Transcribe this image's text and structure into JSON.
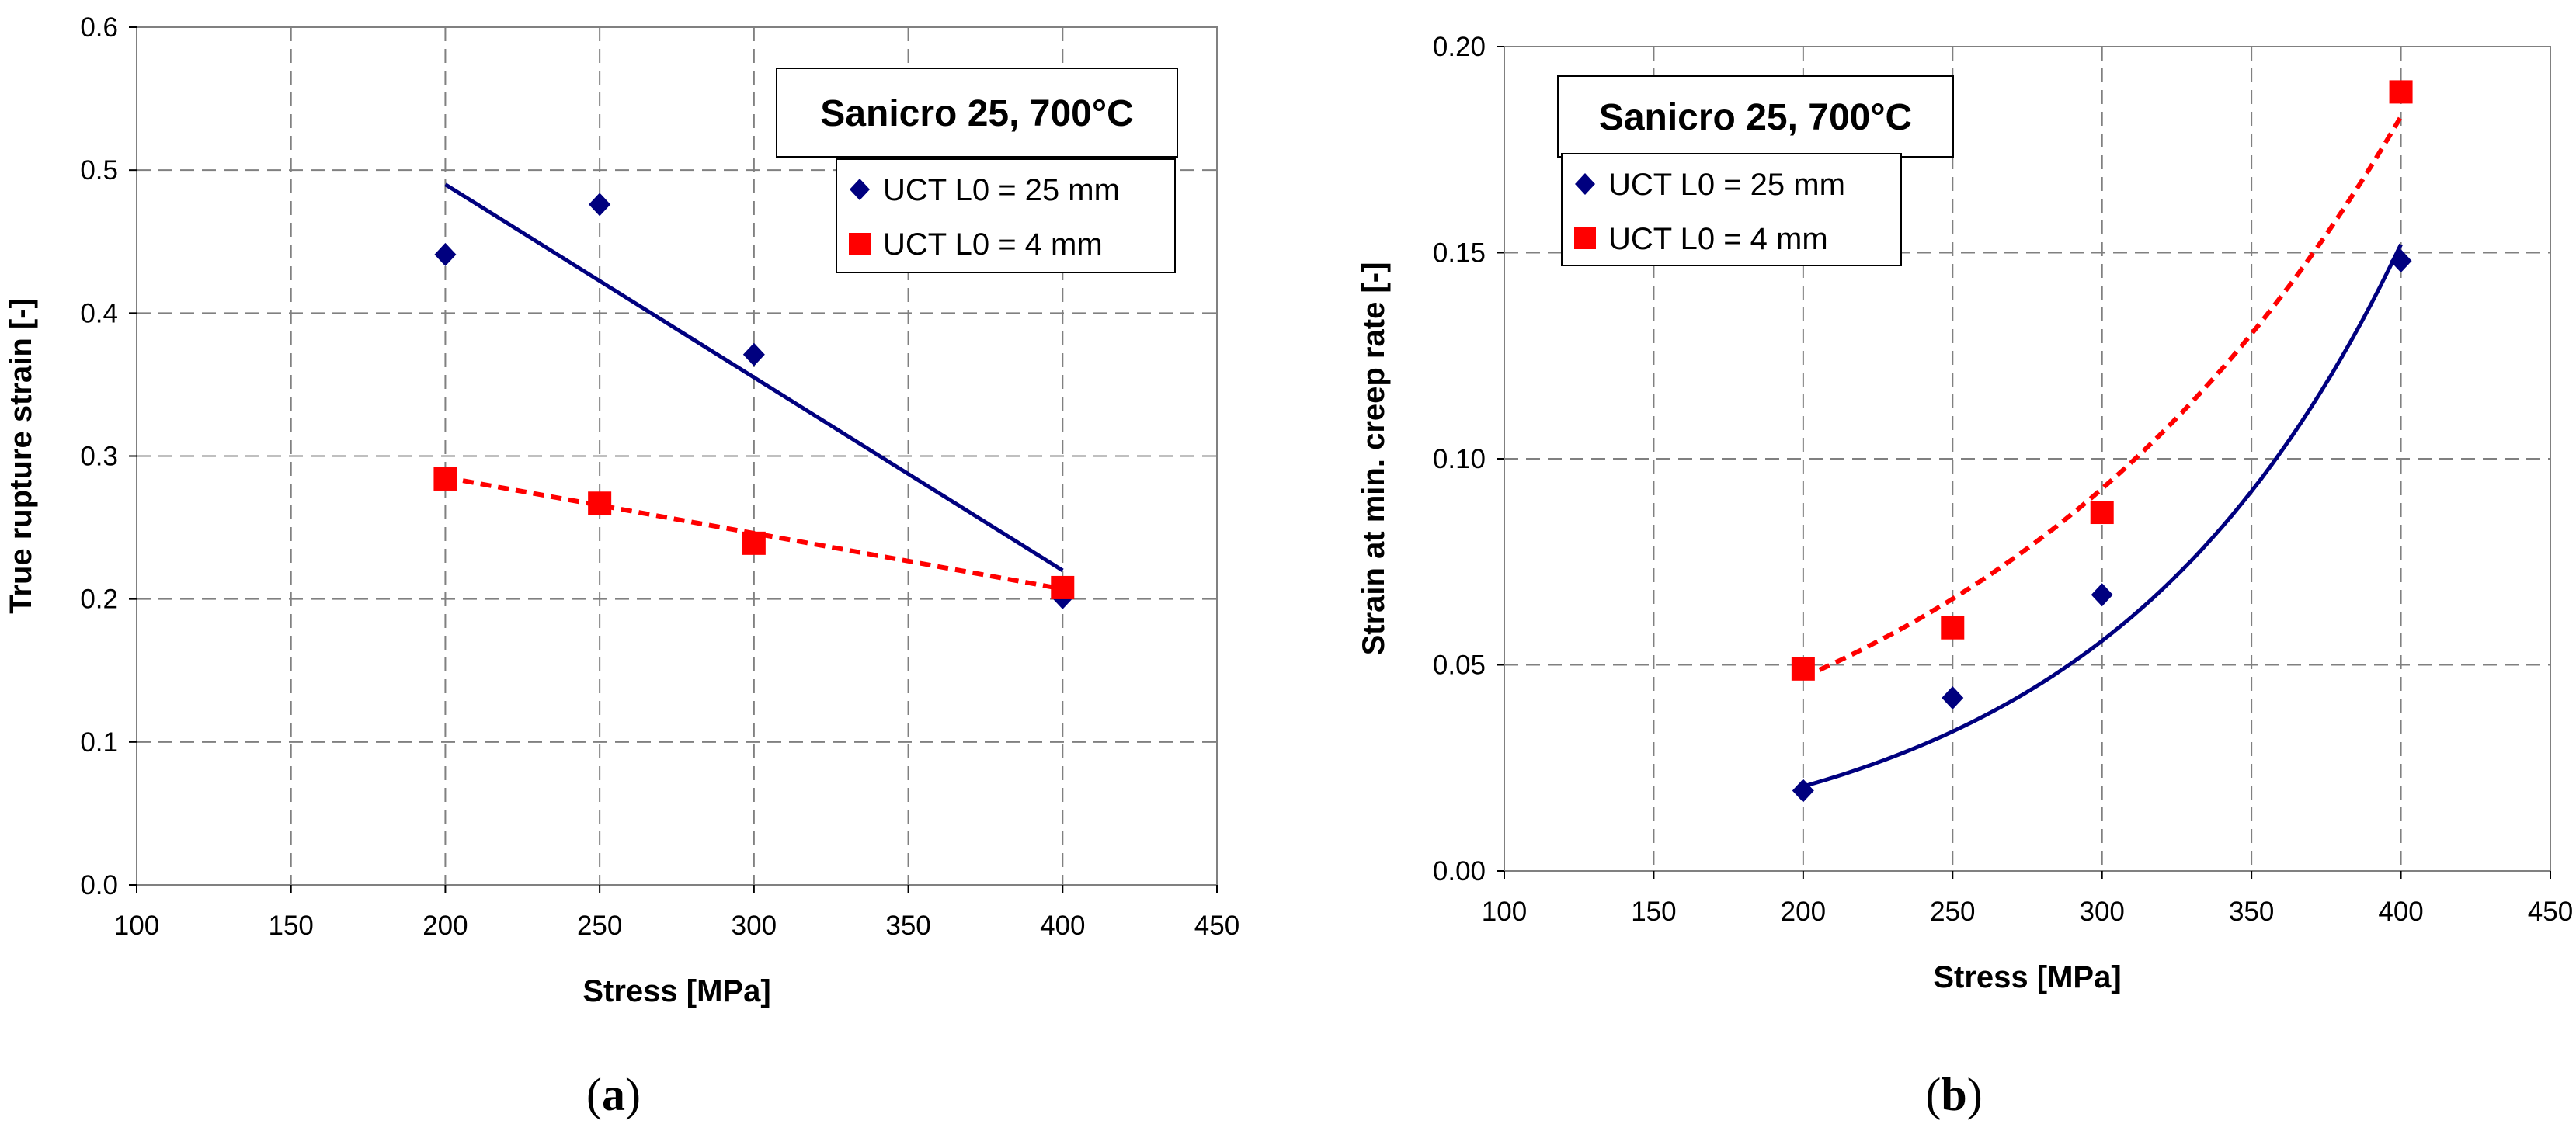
{
  "chart_data": [
    {
      "type": "scatter",
      "caption_open": "(",
      "caption_letter": "a",
      "caption_close": ")",
      "title": "Sanicro 25, 700°C",
      "xlabel": "Stress [MPa]",
      "ylabel": "True rupture strain [-]",
      "xlim": [
        100,
        450
      ],
      "ylim": [
        0,
        0.6
      ],
      "xticks": [
        "100",
        "150",
        "200",
        "250",
        "300",
        "350",
        "400",
        "450"
      ],
      "yticks": [
        "0.0",
        "0.1",
        "0.2",
        "0.3",
        "0.4",
        "0.5",
        "0.6"
      ],
      "grid": true,
      "legend_position": "top-right",
      "series": [
        {
          "name": "UCT L0 = 25 mm",
          "color": "#00007f",
          "marker": "diamond",
          "points": [
            [
              200,
              0.441
            ],
            [
              250,
              0.476
            ],
            [
              300,
              0.371
            ],
            [
              400,
              0.201
            ]
          ],
          "trend": {
            "kind": "linear",
            "dashed": false,
            "points": [
              [
                200,
                0.49
              ],
              [
                400,
                0.22
              ]
            ]
          }
        },
        {
          "name": "UCT L0 = 4 mm",
          "color": "#ff0000",
          "marker": "square",
          "points": [
            [
              200,
              0.284
            ],
            [
              250,
              0.267
            ],
            [
              300,
              0.239
            ],
            [
              400,
              0.208
            ]
          ],
          "trend": {
            "kind": "linear",
            "dashed": true,
            "points": [
              [
                200,
                0.285
              ],
              [
                400,
                0.207
              ]
            ]
          }
        }
      ]
    },
    {
      "type": "scatter",
      "caption_open": "(",
      "caption_letter": "b",
      "caption_close": ")",
      "title": "Sanicro 25, 700°C",
      "xlabel": "Stress [MPa]",
      "ylabel": "Strain at min. creep rate [-]",
      "xlim": [
        100,
        450
      ],
      "ylim": [
        0,
        0.2
      ],
      "xticks": [
        "100",
        "150",
        "200",
        "250",
        "300",
        "350",
        "400",
        "450"
      ],
      "yticks": [
        "0.00",
        "0.05",
        "0.10",
        "0.15",
        "0.20"
      ],
      "grid": true,
      "legend_position": "top-left",
      "series": [
        {
          "name": "UCT L0 = 25 mm",
          "color": "#00007f",
          "marker": "diamond",
          "points": [
            [
              200,
              0.0195
            ],
            [
              250,
              0.042
            ],
            [
              300,
              0.067
            ],
            [
              400,
              0.148
            ]
          ],
          "trend": {
            "kind": "exponential",
            "dashed": false,
            "points": [
              [
                200,
                0.0205
              ],
              [
                400,
                0.152
              ]
            ]
          }
        },
        {
          "name": "UCT L0 = 4 mm",
          "color": "#ff0000",
          "marker": "square",
          "points": [
            [
              200,
              0.049
            ],
            [
              250,
              0.059
            ],
            [
              300,
              0.087
            ],
            [
              400,
              0.189
            ]
          ],
          "trend": {
            "kind": "exponential",
            "dashed": true,
            "points": [
              [
                200,
                0.047
              ],
              [
                400,
                0.183
              ]
            ]
          }
        }
      ]
    }
  ]
}
